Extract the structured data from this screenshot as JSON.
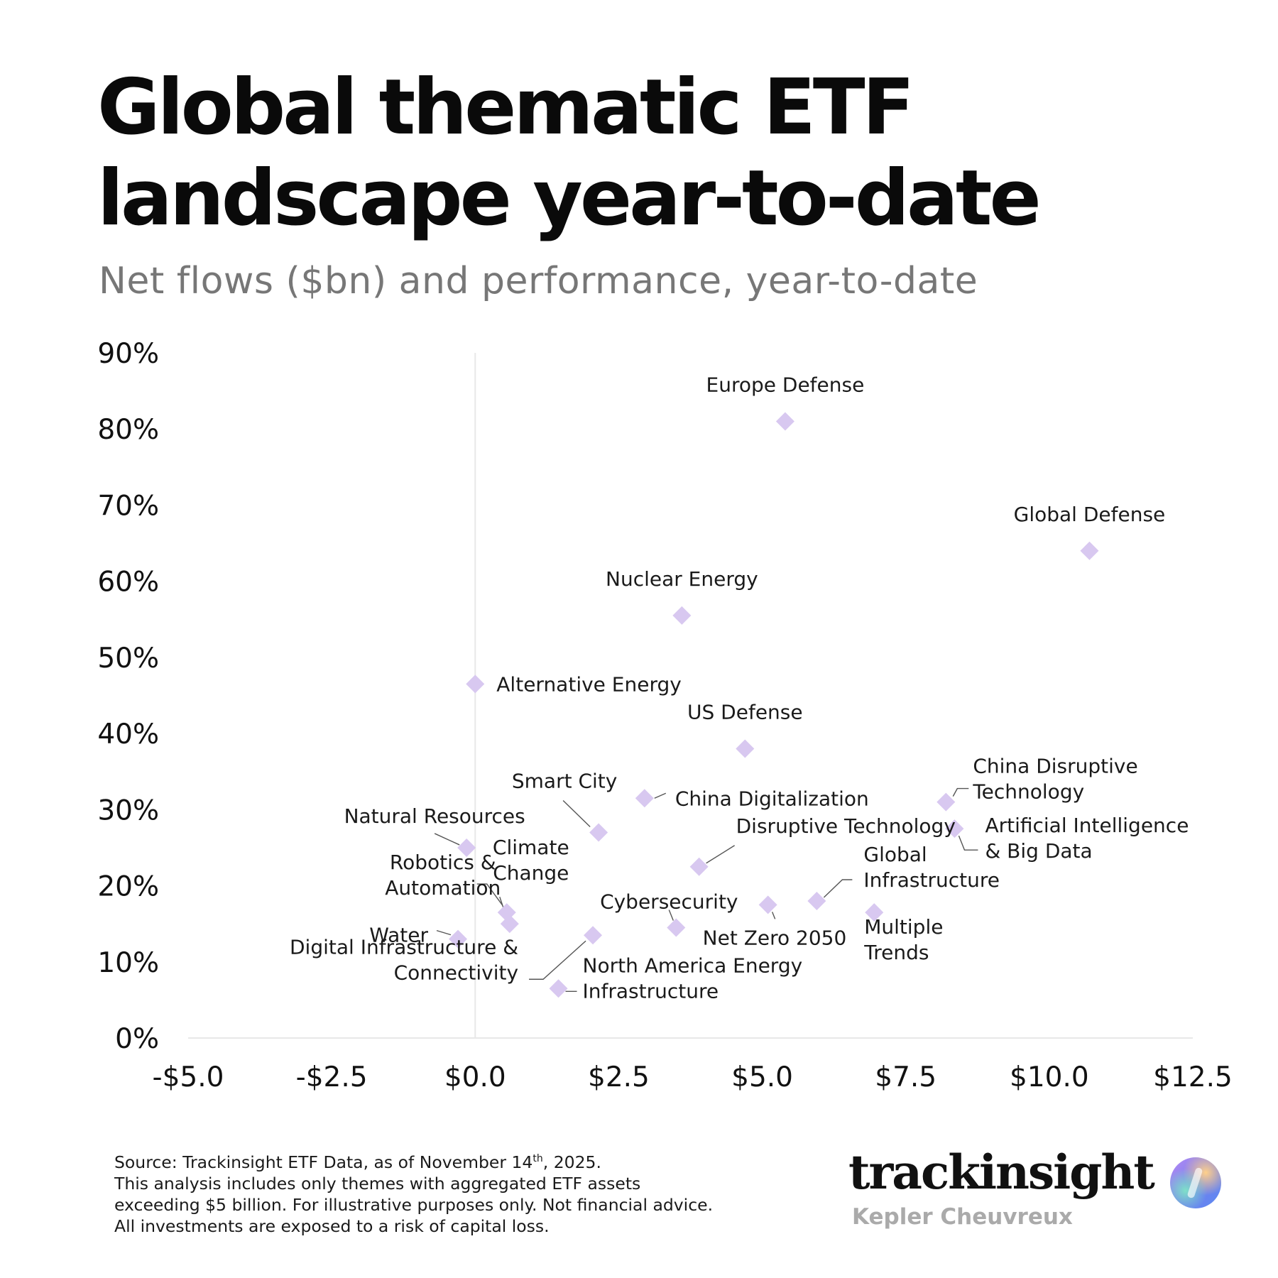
{
  "header": {
    "title_line1": "Global thematic ETF",
    "title_line2": "landscape year-to-date",
    "subtitle": "Net flows ($bn) and performance, year-to-date"
  },
  "footer": {
    "source_pre": "Source: Trackinsight ETF Data, as of November 14",
    "source_sup": "th",
    "source_post": ", 2025.",
    "line2": "This analysis includes only themes with aggregated ETF assets",
    "line3": "exceeding $5 billion. For illustrative purposes only. Not financial advice.",
    "line4": "All investments are exposed to a risk of capital loss."
  },
  "brand": {
    "name": "trackinsight",
    "sub": "Kepler Cheuvreux",
    "logo_icon": "gradient-orb-icon"
  },
  "colors": {
    "marker": "#d8c8f0",
    "axis_line": "#e8e8e8",
    "leader_line": "#555555",
    "subtitle": "#777777"
  },
  "chart_data": {
    "type": "scatter",
    "xlim": [
      -5.0,
      12.5
    ],
    "ylim": [
      0,
      90
    ],
    "x_ticks": [
      "-$5.0",
      "-$2.5",
      "$0.0",
      "$2.5",
      "$5.0",
      "$7.5",
      "$10.0",
      "$12.5"
    ],
    "y_ticks": [
      "0%",
      "10%",
      "20%",
      "30%",
      "40%",
      "50%",
      "60%",
      "70%",
      "80%",
      "90%"
    ],
    "grid": false,
    "marker": "diamond",
    "points": [
      {
        "name": "Europe Defense",
        "lines": [
          "Europe Defense"
        ],
        "x": 5.4,
        "y": 81
      },
      {
        "name": "Global Defense",
        "lines": [
          "Global Defense"
        ],
        "x": 10.7,
        "y": 64
      },
      {
        "name": "Nuclear Energy",
        "lines": [
          "Nuclear Energy"
        ],
        "x": 3.6,
        "y": 55.5
      },
      {
        "name": "Alternative Energy",
        "lines": [
          "Alternative Energy"
        ],
        "x": 0.0,
        "y": 46.5
      },
      {
        "name": "US Defense",
        "lines": [
          "US Defense"
        ],
        "x": 4.7,
        "y": 38
      },
      {
        "name": "China Digitalization",
        "lines": [
          "China Digitalization"
        ],
        "x": 2.95,
        "y": 31.5
      },
      {
        "name": "Smart City",
        "lines": [
          "Smart City"
        ],
        "x": 2.15,
        "y": 27
      },
      {
        "name": "Natural Resources",
        "lines": [
          "Natural Resources"
        ],
        "x": -0.15,
        "y": 25
      },
      {
        "name": "Disruptive Technology",
        "lines": [
          "Disruptive Technology"
        ],
        "x": 3.9,
        "y": 22.5
      },
      {
        "name": "China Disruptive Technology",
        "lines": [
          "China Disruptive",
          "Technology"
        ],
        "x": 8.2,
        "y": 31
      },
      {
        "name": "Artificial Intelligence & Big Data",
        "lines": [
          "Artificial Intelligence",
          "& Big Data"
        ],
        "x": 8.35,
        "y": 27.5
      },
      {
        "name": "Global Infrastructure",
        "lines": [
          "Global",
          "Infrastructure"
        ],
        "x": 5.95,
        "y": 18
      },
      {
        "name": "Multiple Trends",
        "lines": [
          "Multiple",
          "Trends"
        ],
        "x": 6.95,
        "y": 16.5
      },
      {
        "name": "Net Zero 2050",
        "lines": [
          "Net Zero 2050"
        ],
        "x": 5.1,
        "y": 17.5
      },
      {
        "name": "Cybersecurity",
        "lines": [
          "Cybersecurity"
        ],
        "x": 3.5,
        "y": 14.5
      },
      {
        "name": "Robotics & Automation",
        "lines": [
          "Robotics &",
          "Automation"
        ],
        "x": 0.55,
        "y": 16.5
      },
      {
        "name": "Climate Change",
        "lines": [
          "Climate",
          "Change"
        ],
        "x": 0.6,
        "y": 15
      },
      {
        "name": "Water",
        "lines": [
          "Water"
        ],
        "x": -0.3,
        "y": 13
      },
      {
        "name": "Digital Infrastructure & Connectivity",
        "lines": [
          "Digital Infrastructure &",
          "Connectivity"
        ],
        "x": 2.05,
        "y": 13.5
      },
      {
        "name": "North America Energy Infrastructure",
        "lines": [
          "North America Energy",
          "Infrastructure"
        ],
        "x": 1.45,
        "y": 6.5
      }
    ]
  }
}
